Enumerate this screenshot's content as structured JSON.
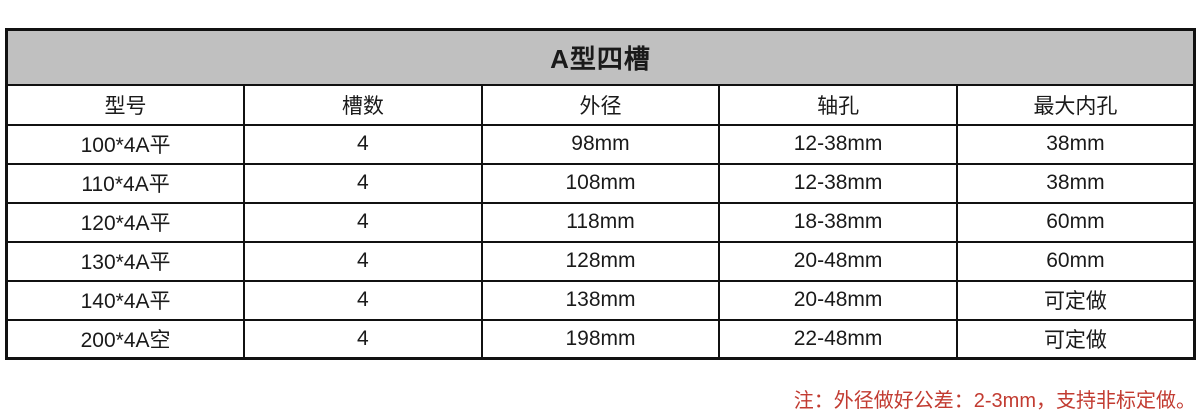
{
  "table": {
    "title": "A型四槽",
    "columns": [
      "型号",
      "槽数",
      "外径",
      "轴孔",
      "最大内孔"
    ],
    "rows": [
      [
        "100*4A平",
        "4",
        "98mm",
        "12-38mm",
        "38mm"
      ],
      [
        "110*4A平",
        "4",
        "108mm",
        "12-38mm",
        "38mm"
      ],
      [
        "120*4A平",
        "4",
        "118mm",
        "18-38mm",
        "60mm"
      ],
      [
        "130*4A平",
        "4",
        "128mm",
        "20-48mm",
        "60mm"
      ],
      [
        "140*4A平",
        "4",
        "138mm",
        "20-48mm",
        "可定做"
      ],
      [
        "200*4A空",
        "4",
        "198mm",
        "22-48mm",
        "可定做"
      ]
    ]
  },
  "note": "注：外径做好公差：2-3mm，支持非标定做。",
  "colors": {
    "title_bg": "#c0c0c0",
    "border": "#111111",
    "note_red": "#c23b31"
  }
}
